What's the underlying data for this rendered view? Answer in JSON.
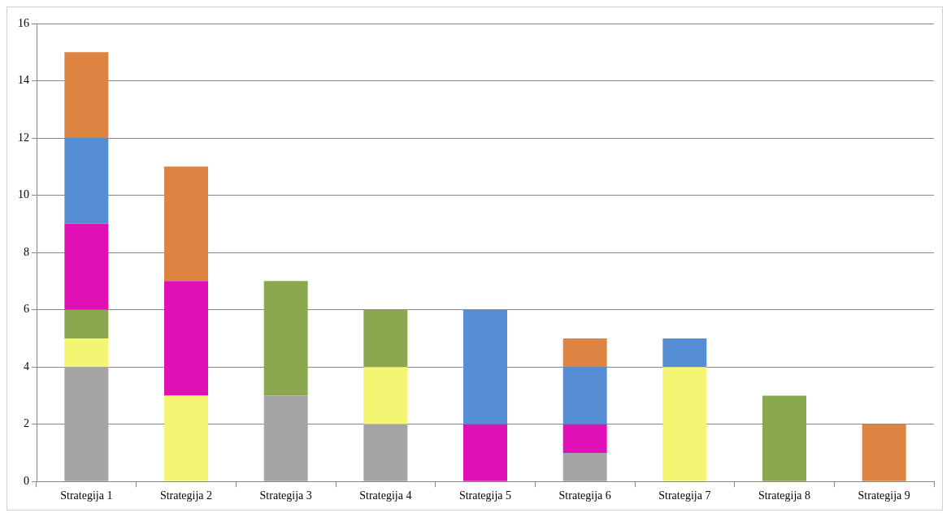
{
  "chart_data": {
    "type": "bar",
    "stacked": true,
    "grid": "y",
    "legend": false,
    "categories": [
      "Strategija 1",
      "Strategija 2",
      "Strategija 3",
      "Strategija 4",
      "Strategija 5",
      "Strategija 6",
      "Strategija 7",
      "Strategija 8",
      "Strategija 9"
    ],
    "ylim": [
      0,
      16
    ],
    "yticks": [
      0,
      2,
      4,
      6,
      8,
      10,
      12,
      14,
      16
    ],
    "series": [
      {
        "color": "#a5a5a5",
        "values": [
          4,
          null,
          3,
          2,
          null,
          1,
          null,
          null,
          null
        ]
      },
      {
        "color": "#f5f574",
        "values": [
          1,
          3,
          null,
          2,
          null,
          null,
          4,
          null,
          null
        ]
      },
      {
        "color": "#8aa84e",
        "values": [
          1,
          null,
          4,
          2,
          null,
          null,
          null,
          3,
          null
        ]
      },
      {
        "color": "#e010b4",
        "values": [
          3,
          4,
          null,
          null,
          2,
          1,
          null,
          null,
          null
        ]
      },
      {
        "color": "#558ed5",
        "values": [
          3,
          null,
          null,
          null,
          4,
          2,
          1,
          null,
          null
        ]
      },
      {
        "color": "#dd8442",
        "values": [
          3,
          4,
          null,
          null,
          null,
          1,
          null,
          null,
          2
        ]
      }
    ]
  }
}
